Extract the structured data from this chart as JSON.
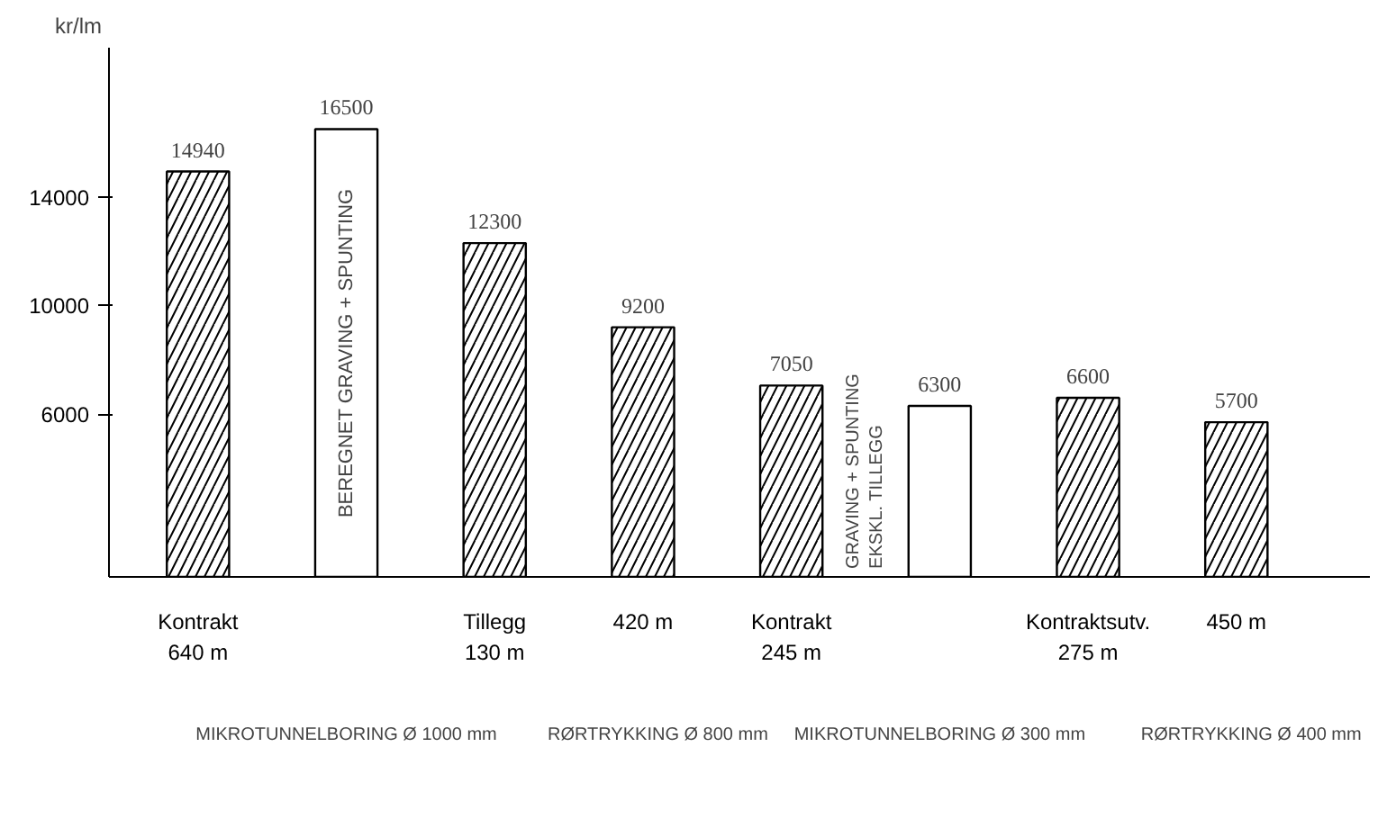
{
  "chart_data": {
    "type": "bar",
    "ylabel": "kr/lm",
    "categories": [
      "Kontrakt\n640 m",
      null,
      "Tillegg\n130 m",
      "420 m",
      "Kontrakt\n245 m",
      null,
      "Kontraktsutv.\n275 m",
      "450 m"
    ],
    "series": [
      {
        "color": "#000000",
        "values": [
          14940,
          null,
          12300,
          9200,
          7050,
          null,
          6600,
          5700
        ]
      },
      {
        "color": "#ffffff",
        "values": [
          null,
          16500,
          null,
          null,
          null,
          6300,
          null,
          null
        ]
      }
    ],
    "ylim": [
      0,
      19500
    ],
    "yticks": [
      6000,
      10000,
      14000
    ],
    "grid": false,
    "data_labels": true,
    "annotations": [
      "BEREGNET GRAVING + SPUNTING",
      "GRAVING + SPUNTING\nEKSKL. TILLEGG",
      "MIKROTUNNELBORING Ø 1000 mm",
      "RØRTRYKKING Ø 800 mm",
      "MIKROTUNNELBORING Ø 300 mm",
      "RØRTRYKKING Ø 400 mm"
    ]
  }
}
